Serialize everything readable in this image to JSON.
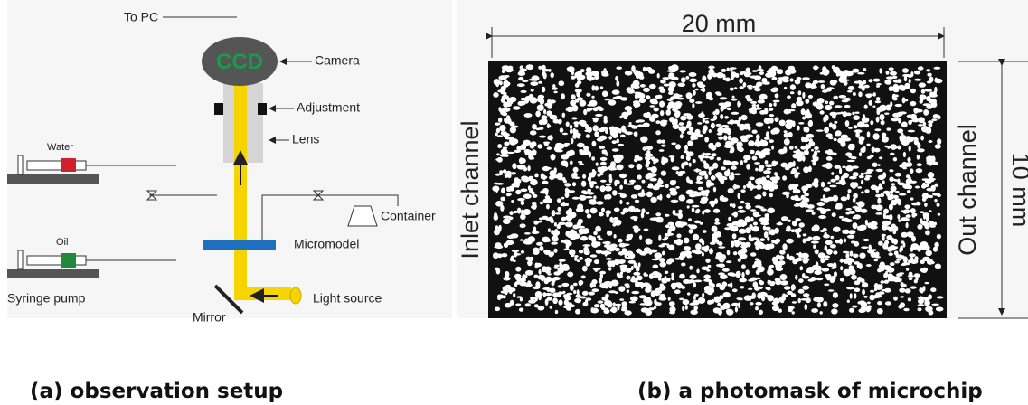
{
  "setup": {
    "to_pc": "To PC",
    "ccd": "CCD",
    "camera": "Camera",
    "adjustment": "Adjustment",
    "lens": "Lens",
    "water": "Water",
    "oil": "Oil",
    "syringe_pump": "Syringe pump",
    "container": "Container",
    "micromodel": "Micromodel",
    "light_source": "Light source",
    "mirror": "Mirror"
  },
  "photomask": {
    "width_label": "20 mm",
    "height_label": "10 mm",
    "inlet": "Inlet channel",
    "outlet": "Out channel"
  },
  "captions": {
    "a": "(a) observation setup",
    "b": "(b) a photomask of microchip"
  }
}
